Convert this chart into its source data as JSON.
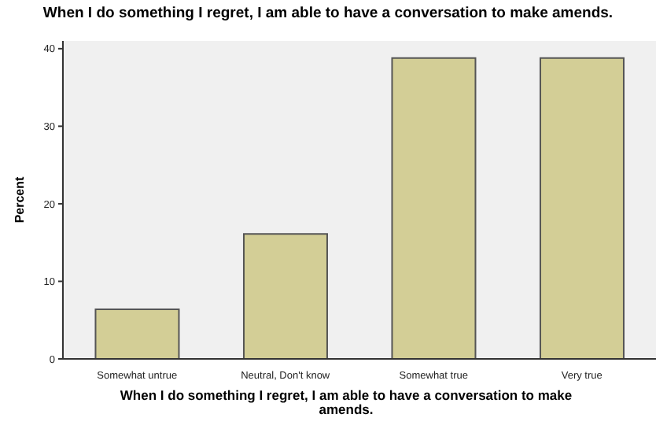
{
  "chart_data": {
    "type": "bar",
    "title": "When I do something I regret, I am able to have a conversation to make amends.",
    "xlabel": "When I do something I regret, I am able to have a conversation to make amends.",
    "ylabel": "Percent",
    "categories": [
      "Somewhat untrue",
      "Neutral, Don't know",
      "Somewhat true",
      "Very true"
    ],
    "values": [
      6.4,
      16.1,
      38.8,
      38.8
    ],
    "color": "#d3ce96",
    "ylim": [
      0,
      41
    ],
    "yticks": [
      0,
      10,
      20,
      30,
      40
    ],
    "grid": false
  }
}
